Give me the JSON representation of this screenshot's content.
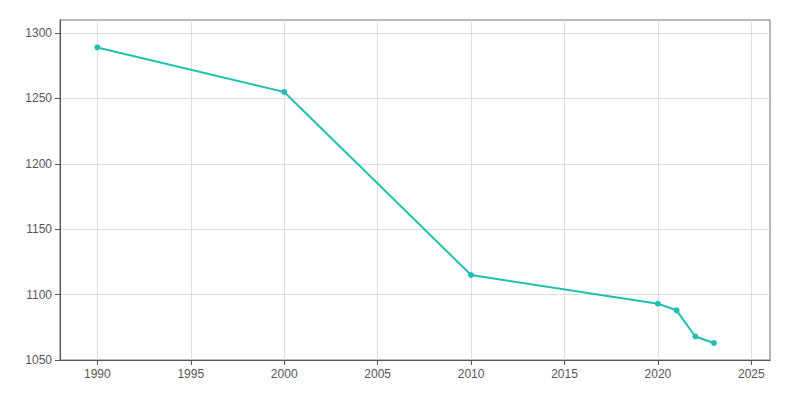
{
  "chart_data": {
    "type": "line",
    "x": [
      1990,
      2000,
      2010,
      2020,
      2021,
      2022,
      2023
    ],
    "values": [
      1289,
      1255,
      1115,
      1093,
      1088,
      1068,
      1063
    ],
    "color": "#20c0b0",
    "marker": "circle",
    "xlim": [
      1988,
      2026
    ],
    "xticks": [
      1990,
      1995,
      2000,
      2005,
      2010,
      2015,
      2020,
      2025
    ],
    "ylim": [
      1050,
      1310
    ],
    "yticks": [
      1050,
      1100,
      1150,
      1200,
      1250,
      1300
    ],
    "grid": true
  }
}
